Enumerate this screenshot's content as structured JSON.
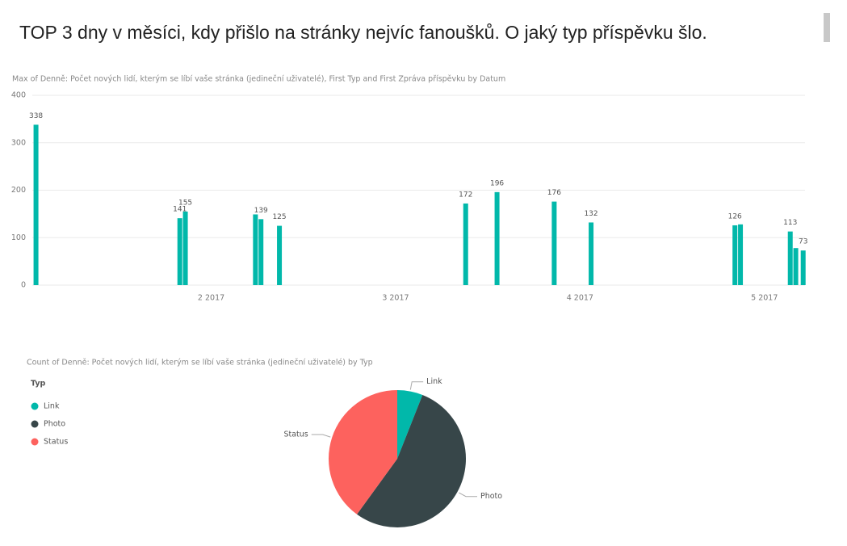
{
  "title": "TOP 3 dny v měsíci, kdy přišlo na stránky nejvíc fanoušků. O jaký typ příspěvku šlo.",
  "chart_data": [
    {
      "type": "bar",
      "title": "Max of Denně: Počet nových lidí, kterým se líbí vaše stránka (jedineční uživatelé), First Typ and First Zpráva příspěvku by Datum",
      "x": [
        1.05,
        1.83,
        1.86,
        2.24,
        2.27,
        2.37,
        3.38,
        3.55,
        3.86,
        4.06,
        4.84,
        4.87,
        5.14,
        5.17,
        5.21
      ],
      "values": [
        338,
        141,
        155,
        149,
        139,
        125,
        172,
        196,
        176,
        132,
        126,
        128,
        113,
        78,
        73
      ],
      "value_labels": [
        338,
        141,
        155,
        null,
        139,
        125,
        172,
        196,
        176,
        132,
        126,
        null,
        113,
        null,
        73
      ],
      "color": "#01b8aa",
      "xlim": [
        1.03,
        5.22
      ],
      "xticks": [
        {
          "value": 2,
          "label": "2 2017"
        },
        {
          "value": 3,
          "label": "3 2017"
        },
        {
          "value": 4,
          "label": "4 2017"
        },
        {
          "value": 5,
          "label": "5 2017"
        }
      ],
      "ylim": [
        0,
        400
      ],
      "yticks": [
        0,
        100,
        200,
        300,
        400
      ],
      "grid": true
    },
    {
      "type": "pie",
      "title": "Count of Denně: Počet nových lidí, kterým se líbí vaše stránka (jedineční uživatelé) by Typ",
      "legend_title": "Typ",
      "categories": [
        "Link",
        "Photo",
        "Status"
      ],
      "values": [
        6,
        54,
        40
      ],
      "colors": [
        "#01b8aa",
        "#374649",
        "#fd625e"
      ]
    }
  ]
}
